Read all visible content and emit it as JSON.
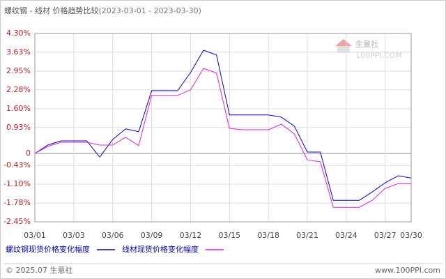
{
  "chart_data": {
    "type": "line",
    "title": "螺纹钢 - 线材 价格趋势比较",
    "subtitle": "(2023-03-01 - 2023-03-30)",
    "categories": [
      "03/01",
      null,
      null,
      "03/03",
      null,
      null,
      "03/06",
      null,
      null,
      "03/09",
      null,
      null,
      "03/12",
      null,
      null,
      "03/15",
      null,
      null,
      "03/18",
      null,
      null,
      "03/21",
      null,
      null,
      "03/24",
      null,
      null,
      "03/27",
      null,
      "03/30"
    ],
    "series": [
      {
        "name": "螺纹钢现货价格变化幅度",
        "color": "#0000cc",
        "values": [
          0.0,
          0.3,
          0.45,
          0.45,
          0.45,
          -0.13,
          0.5,
          0.88,
          0.78,
          2.25,
          2.25,
          2.25,
          2.9,
          3.7,
          3.53,
          1.38,
          1.38,
          1.38,
          1.38,
          1.3,
          0.98,
          0.05,
          0.05,
          -1.68,
          -1.68,
          -1.68,
          -1.38,
          -1.05,
          -0.8,
          -0.88
        ]
      },
      {
        "name": "线材现货价格变化幅度",
        "color": "#e020e0",
        "values": [
          0.0,
          0.25,
          0.4,
          0.4,
          0.4,
          0.3,
          0.3,
          0.58,
          0.28,
          2.08,
          2.08,
          2.08,
          2.28,
          3.05,
          2.88,
          0.9,
          0.85,
          0.85,
          0.85,
          1.05,
          0.7,
          -0.23,
          -0.3,
          -1.93,
          -1.93,
          -1.93,
          -1.68,
          -1.25,
          -1.08,
          -1.08
        ]
      }
    ],
    "ylim": [
      -2.45,
      4.3
    ],
    "yticks": [
      {
        "value": 4.3,
        "label": "4.30%"
      },
      {
        "value": 3.63,
        "label": "3.63%"
      },
      {
        "value": 2.95,
        "label": "2.95%"
      },
      {
        "value": 2.28,
        "label": "2.28%"
      },
      {
        "value": 1.6,
        "label": "1.60%"
      },
      {
        "value": 0.93,
        "label": "0.93%"
      },
      0,
      {
        "value": -0.43,
        "label": "-0.43%"
      },
      {
        "value": -1.1,
        "label": "-1.10%"
      },
      {
        "value": -1.78,
        "label": "-1.78%"
      },
      {
        "value": -2.45,
        "label": "-2.45%"
      }
    ],
    "grid": true,
    "watermark": {
      "brand": "生意社",
      "site": "100PPI.COM"
    },
    "footer": {
      "copyright": "© 2025.07 生意社",
      "url": "www.100PPI.com"
    }
  }
}
